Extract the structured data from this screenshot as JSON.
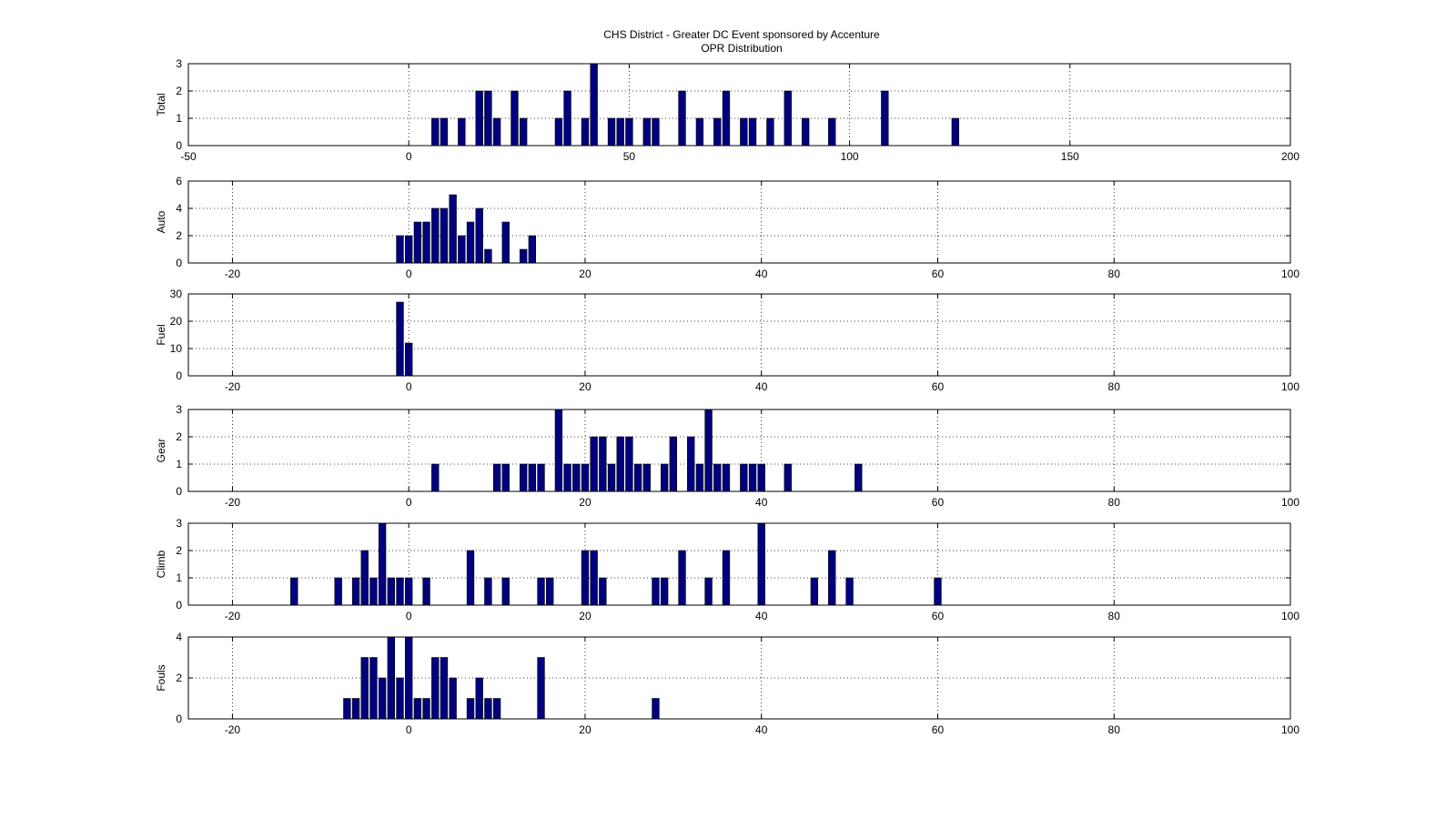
{
  "figure": {
    "title_line1": "CHS District - Greater DC Event sponsored by Accenture",
    "title_line2": "OPR Distribution"
  },
  "colors": {
    "bar_fill": "#00007f",
    "bar_stroke": "#000000",
    "grid": "#000000"
  },
  "chart_data": [
    {
      "type": "bar",
      "ylabel": "Total",
      "xlim": [
        -50,
        200
      ],
      "ylim": [
        0,
        3
      ],
      "xticks": [
        -50,
        0,
        50,
        100,
        150,
        200
      ],
      "yticks": [
        0,
        1,
        2,
        3
      ],
      "bin_width": 2,
      "grid": true,
      "x": [
        6,
        8,
        12,
        16,
        18,
        20,
        24,
        26,
        34,
        36,
        40,
        42,
        46,
        48,
        50,
        54,
        56,
        62,
        66,
        70,
        72,
        76,
        78,
        82,
        86,
        90,
        96,
        108,
        124
      ],
      "values": [
        1,
        1,
        1,
        2,
        2,
        1,
        2,
        1,
        1,
        2,
        1,
        3,
        1,
        1,
        1,
        1,
        1,
        2,
        1,
        1,
        2,
        1,
        1,
        1,
        2,
        1,
        1,
        2,
        1
      ]
    },
    {
      "type": "bar",
      "ylabel": "Auto",
      "xlim": [
        -25,
        100
      ],
      "ylim": [
        0,
        6
      ],
      "xticks": [
        -20,
        0,
        20,
        40,
        60,
        80,
        100
      ],
      "yticks": [
        0,
        2,
        4,
        6
      ],
      "bin_width": 1,
      "grid": true,
      "x": [
        -1,
        0,
        1,
        2,
        3,
        4,
        5,
        6,
        7,
        8,
        9,
        11,
        13,
        14
      ],
      "values": [
        2,
        2,
        3,
        3,
        4,
        4,
        5,
        2,
        3,
        4,
        1,
        3,
        1,
        2
      ]
    },
    {
      "type": "bar",
      "ylabel": "Fuel",
      "xlim": [
        -25,
        100
      ],
      "ylim": [
        0,
        30
      ],
      "xticks": [
        -20,
        0,
        20,
        40,
        60,
        80,
        100
      ],
      "yticks": [
        0,
        10,
        20,
        30
      ],
      "bin_width": 1,
      "grid": true,
      "x": [
        -1,
        0
      ],
      "values": [
        27,
        12
      ]
    },
    {
      "type": "bar",
      "ylabel": "Gear",
      "xlim": [
        -25,
        100
      ],
      "ylim": [
        0,
        3
      ],
      "xticks": [
        -20,
        0,
        20,
        40,
        60,
        80,
        100
      ],
      "yticks": [
        0,
        1,
        2,
        3
      ],
      "bin_width": 1,
      "grid": true,
      "x": [
        3,
        10,
        11,
        13,
        14,
        15,
        17,
        18,
        19,
        20,
        21,
        22,
        23,
        24,
        25,
        26,
        27,
        29,
        30,
        32,
        33,
        34,
        35,
        36,
        38,
        39,
        40,
        43,
        51
      ],
      "values": [
        1,
        1,
        1,
        1,
        1,
        1,
        3,
        1,
        1,
        1,
        2,
        2,
        1,
        2,
        2,
        1,
        1,
        1,
        2,
        2,
        1,
        3,
        1,
        1,
        1,
        1,
        1,
        1,
        1
      ]
    },
    {
      "type": "bar",
      "ylabel": "Climb",
      "xlim": [
        -25,
        100
      ],
      "ylim": [
        0,
        3
      ],
      "xticks": [
        -20,
        0,
        20,
        40,
        60,
        80,
        100
      ],
      "yticks": [
        0,
        1,
        2,
        3
      ],
      "bin_width": 1,
      "grid": true,
      "x": [
        -13,
        -8,
        -6,
        -5,
        -4,
        -3,
        -2,
        -1,
        0,
        2,
        7,
        9,
        11,
        15,
        16,
        20,
        21,
        22,
        28,
        29,
        31,
        34,
        36,
        40,
        46,
        48,
        50,
        60
      ],
      "values": [
        1,
        1,
        1,
        2,
        1,
        3,
        1,
        1,
        1,
        1,
        2,
        1,
        1,
        1,
        1,
        2,
        2,
        1,
        1,
        1,
        2,
        1,
        2,
        3,
        1,
        2,
        1,
        1
      ]
    },
    {
      "type": "bar",
      "ylabel": "Fouls",
      "xlim": [
        -25,
        100
      ],
      "ylim": [
        0,
        4
      ],
      "xticks": [
        -20,
        0,
        20,
        40,
        60,
        80,
        100
      ],
      "yticks": [
        0,
        2,
        4
      ],
      "bin_width": 1,
      "grid": true,
      "x": [
        -7,
        -6,
        -5,
        -4,
        -3,
        -2,
        -1,
        0,
        1,
        2,
        3,
        4,
        5,
        7,
        8,
        9,
        10,
        15,
        28
      ],
      "values": [
        1,
        1,
        3,
        3,
        2,
        4,
        2,
        4,
        1,
        1,
        3,
        3,
        2,
        1,
        2,
        1,
        1,
        3,
        1
      ]
    }
  ]
}
